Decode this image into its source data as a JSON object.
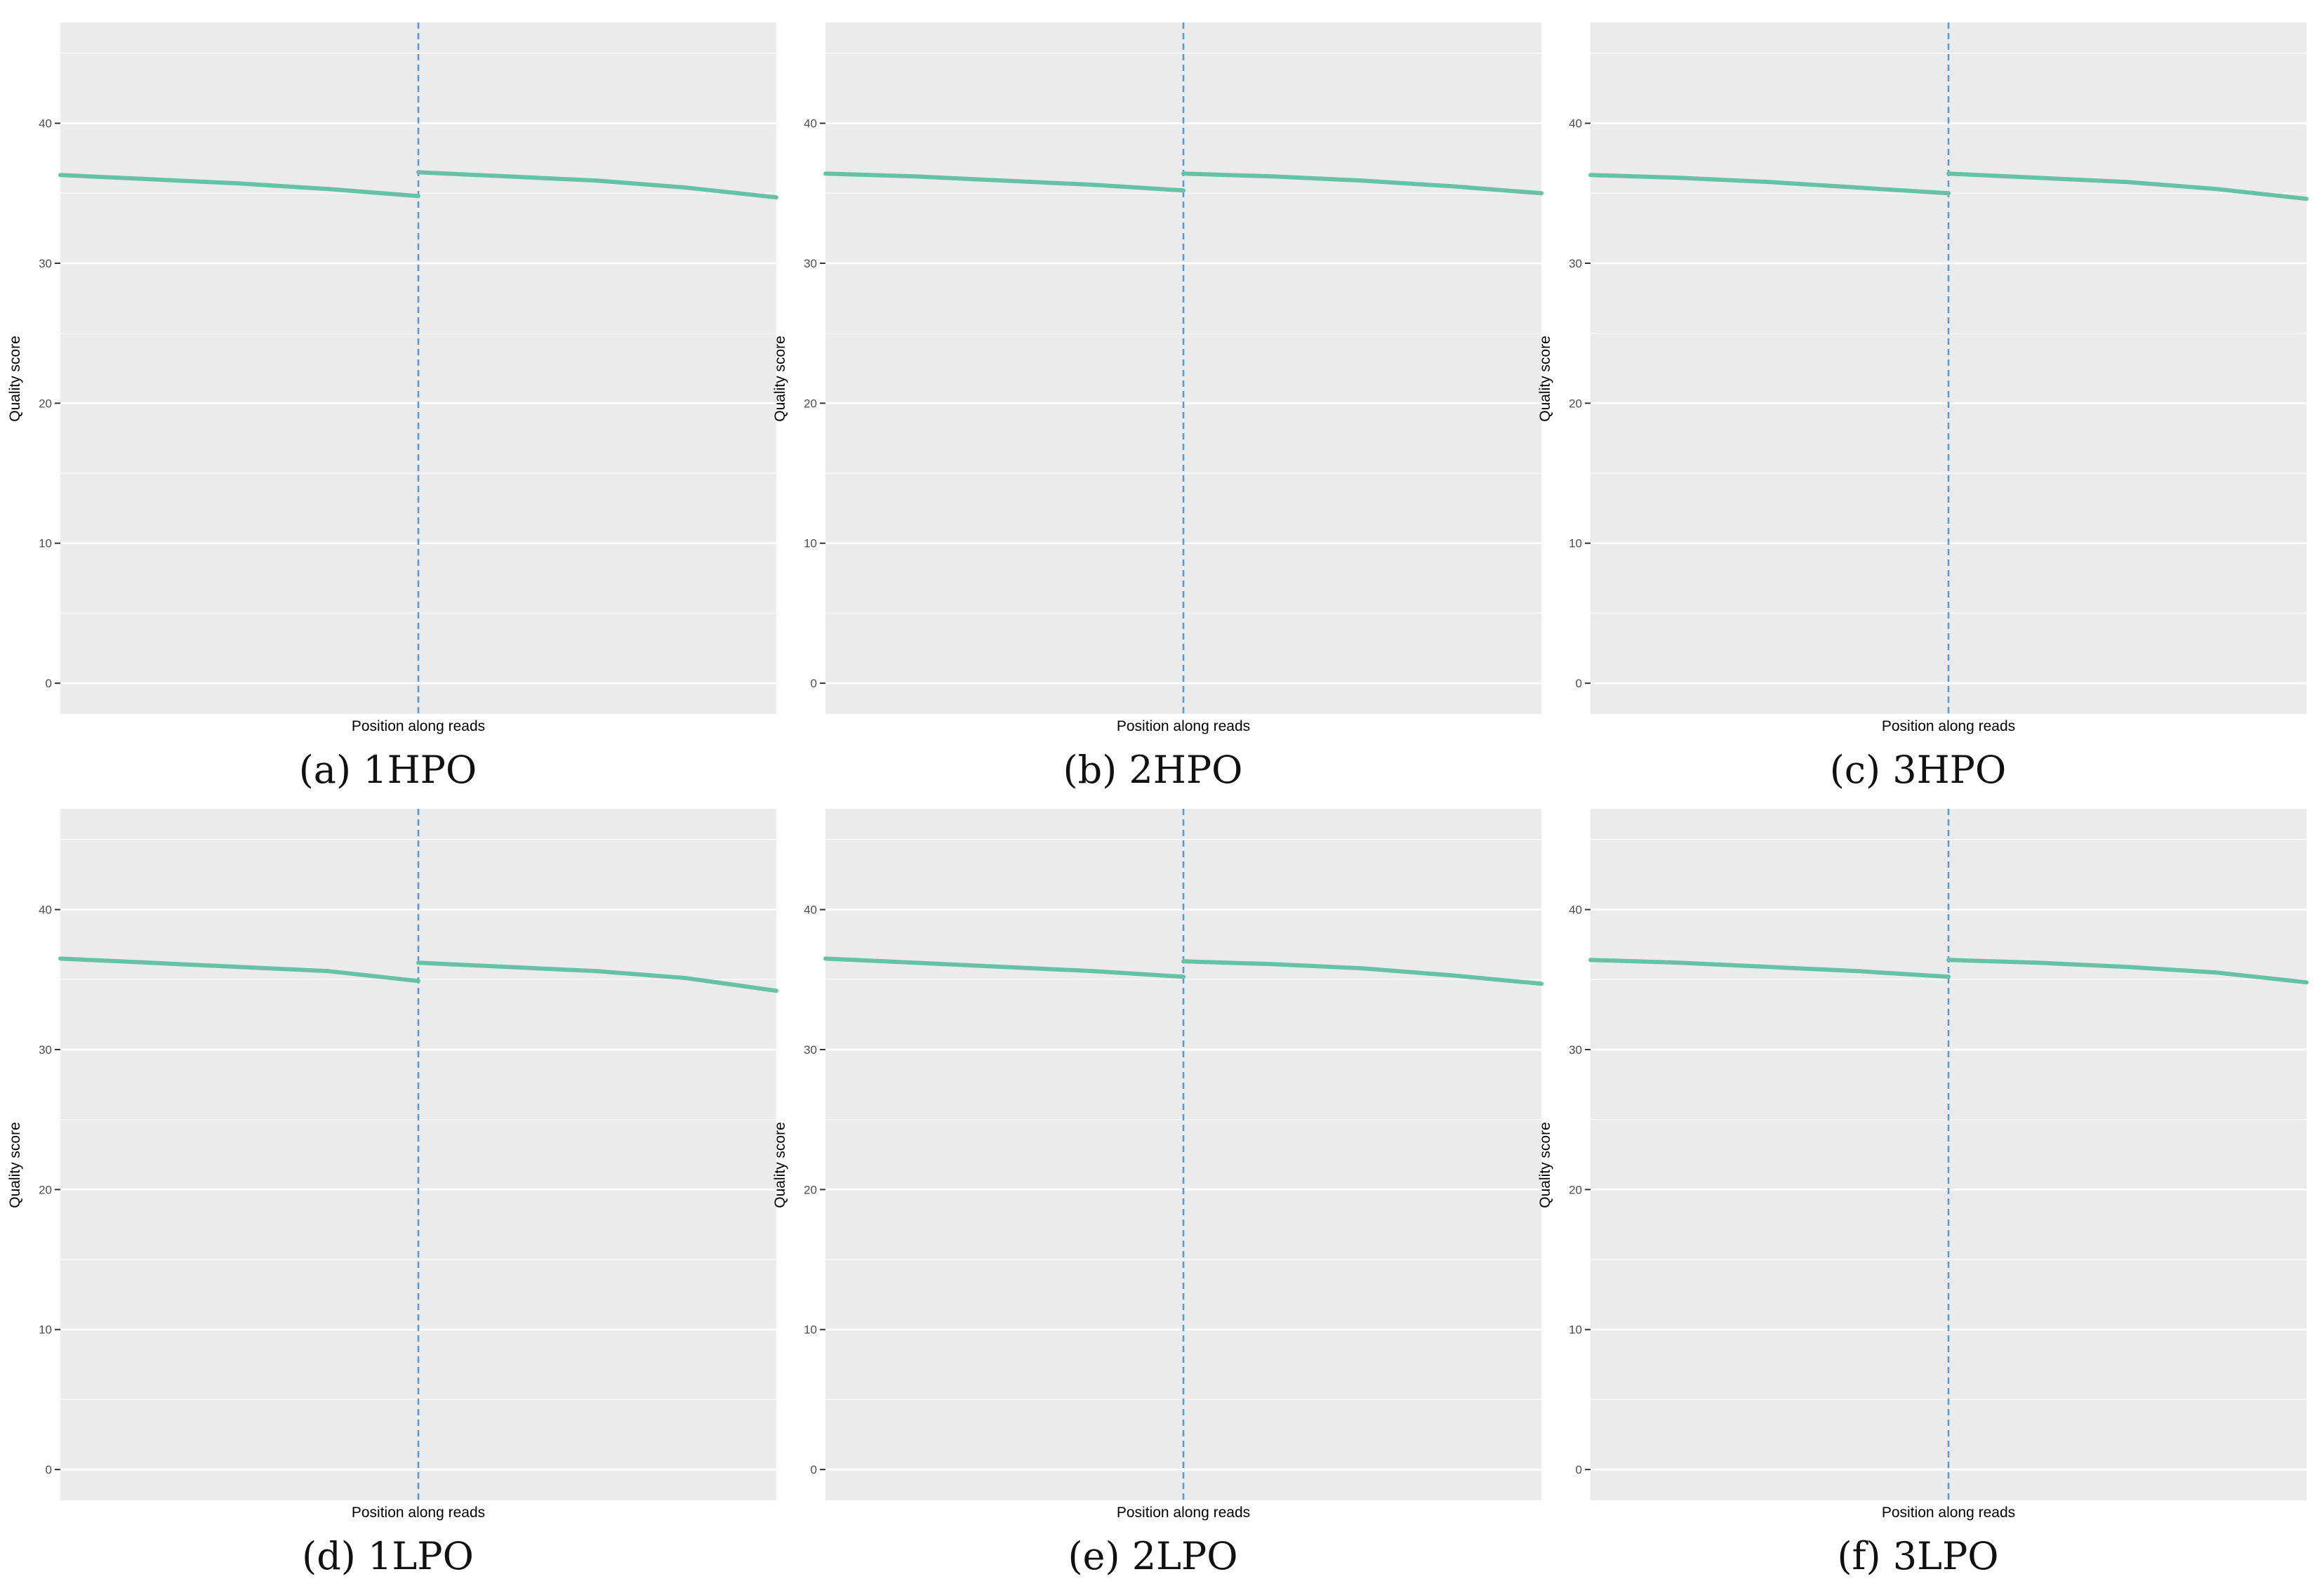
{
  "colors": {
    "panel_background": "#EBEBEB",
    "grid": "#FFFFFF",
    "series": "#66C2A5",
    "divider": "#5B9BD5",
    "tick_text": "#4D4D4D"
  },
  "chart_data": [
    {
      "type": "line",
      "caption": "(a) 1HPO",
      "xlabel": "Position along reads",
      "ylabel": "Quality score",
      "ylim": [
        -2.2,
        47.2
      ],
      "yticks": [
        0,
        10,
        20,
        30,
        40
      ],
      "grid": true,
      "divider_line": "dashed, at junction of read 1 and read 2",
      "series": [
        {
          "segments": [
            {
              "x": [
                0,
                0.25,
                0.5,
                0.75,
                1
              ],
              "y": [
                36.3,
                36.0,
                35.7,
                35.3,
                34.8
              ]
            },
            {
              "x": [
                1,
                1.25,
                1.5,
                1.75,
                2
              ],
              "y": [
                36.5,
                36.2,
                35.9,
                35.4,
                34.7
              ]
            }
          ]
        }
      ]
    },
    {
      "type": "line",
      "caption": "(b) 2HPO",
      "xlabel": "Position along reads",
      "ylabel": "Quality score",
      "ylim": [
        -2.2,
        47.2
      ],
      "yticks": [
        0,
        10,
        20,
        30,
        40
      ],
      "grid": true,
      "series": [
        {
          "segments": [
            {
              "x": [
                0,
                0.25,
                0.5,
                0.75,
                1
              ],
              "y": [
                36.4,
                36.2,
                35.9,
                35.6,
                35.2
              ]
            },
            {
              "x": [
                1,
                1.25,
                1.5,
                1.75,
                2
              ],
              "y": [
                36.4,
                36.2,
                35.9,
                35.5,
                35.0
              ]
            }
          ]
        }
      ]
    },
    {
      "type": "line",
      "caption": "(c) 3HPO",
      "xlabel": "Position along reads",
      "ylabel": "Quality score",
      "ylim": [
        -2.2,
        47.2
      ],
      "yticks": [
        0,
        10,
        20,
        30,
        40
      ],
      "grid": true,
      "series": [
        {
          "segments": [
            {
              "x": [
                0,
                0.25,
                0.5,
                0.75,
                1
              ],
              "y": [
                36.3,
                36.1,
                35.8,
                35.4,
                35.0
              ]
            },
            {
              "x": [
                1,
                1.25,
                1.5,
                1.75,
                2
              ],
              "y": [
                36.4,
                36.1,
                35.8,
                35.3,
                34.6
              ]
            }
          ]
        }
      ]
    },
    {
      "type": "line",
      "caption": "(d) 1LPO",
      "xlabel": "Position along reads",
      "ylabel": "Quality score",
      "ylim": [
        -2.2,
        47.2
      ],
      "yticks": [
        0,
        10,
        20,
        30,
        40
      ],
      "grid": true,
      "series": [
        {
          "segments": [
            {
              "x": [
                0,
                0.25,
                0.5,
                0.75,
                1
              ],
              "y": [
                36.5,
                36.2,
                35.9,
                35.6,
                34.9
              ]
            },
            {
              "x": [
                1,
                1.25,
                1.5,
                1.75,
                2
              ],
              "y": [
                36.2,
                35.9,
                35.6,
                35.1,
                34.2
              ]
            }
          ]
        }
      ]
    },
    {
      "type": "line",
      "caption": "(e) 2LPO",
      "xlabel": "Position along reads",
      "ylabel": "Quality score",
      "ylim": [
        -2.2,
        47.2
      ],
      "yticks": [
        0,
        10,
        20,
        30,
        40
      ],
      "grid": true,
      "series": [
        {
          "segments": [
            {
              "x": [
                0,
                0.25,
                0.5,
                0.75,
                1
              ],
              "y": [
                36.5,
                36.2,
                35.9,
                35.6,
                35.2
              ]
            },
            {
              "x": [
                1,
                1.25,
                1.5,
                1.75,
                2
              ],
              "y": [
                36.3,
                36.1,
                35.8,
                35.3,
                34.7
              ]
            }
          ]
        }
      ]
    },
    {
      "type": "line",
      "caption": "(f) 3LPO",
      "xlabel": "Position along reads",
      "ylabel": "Quality score",
      "ylim": [
        -2.2,
        47.2
      ],
      "yticks": [
        0,
        10,
        20,
        30,
        40
      ],
      "grid": true,
      "series": [
        {
          "segments": [
            {
              "x": [
                0,
                0.25,
                0.5,
                0.75,
                1
              ],
              "y": [
                36.4,
                36.2,
                35.9,
                35.6,
                35.2
              ]
            },
            {
              "x": [
                1,
                1.25,
                1.5,
                1.75,
                2
              ],
              "y": [
                36.4,
                36.2,
                35.9,
                35.5,
                34.8
              ]
            }
          ]
        }
      ]
    }
  ]
}
